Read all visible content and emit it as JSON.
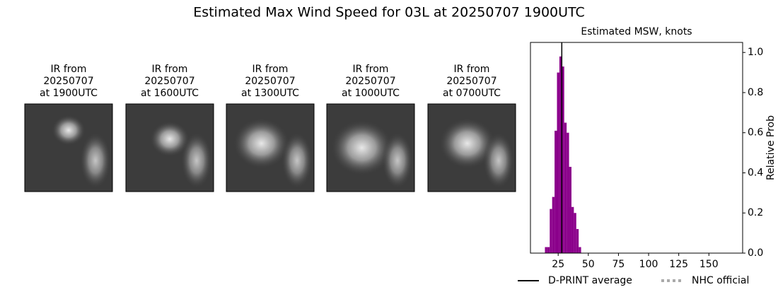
{
  "title": "Estimated Max Wind Speed for 03L at 20250707 1900UTC",
  "panels": [
    {
      "lines": [
        "IR from",
        "20250707",
        "at 1900UTC"
      ]
    },
    {
      "lines": [
        "IR from",
        "20250707",
        "at 1600UTC"
      ]
    },
    {
      "lines": [
        "IR from",
        "20250707",
        "at 1300UTC"
      ]
    },
    {
      "lines": [
        "IR from",
        "20250707",
        "at 1000UTC"
      ]
    },
    {
      "lines": [
        "IR from",
        "20250707",
        "at 0700UTC"
      ]
    }
  ],
  "chart_data": {
    "type": "histogram",
    "title": "Estimated MSW, knots",
    "y_label": "Relative Prob",
    "bins": [
      14,
      16,
      18,
      20,
      22,
      24,
      26,
      28,
      30,
      32,
      34,
      36,
      38,
      40,
      42,
      44
    ],
    "values": [
      0.03,
      0.03,
      0.22,
      0.28,
      0.61,
      0.9,
      0.98,
      0.93,
      0.65,
      0.6,
      0.43,
      0.23,
      0.2,
      0.12,
      0.03
    ],
    "color": "#8b008b",
    "xlim": [
      2,
      178
    ],
    "xticks": [
      25,
      50,
      75,
      100,
      125,
      150
    ],
    "ylim": [
      0,
      1.05
    ],
    "yticks": [
      {
        "value": 0,
        "label": "0.0"
      },
      0.2,
      0.4,
      0.6,
      0.8,
      {
        "value": 1,
        "label": "1.0"
      }
    ],
    "lines": [
      {
        "name": "D-PRINT average",
        "color": "#000000",
        "x": 28,
        "dashed": false
      },
      {
        "name": "NHC official",
        "color": "#aaaaaa",
        "dashed": true
      }
    ]
  }
}
